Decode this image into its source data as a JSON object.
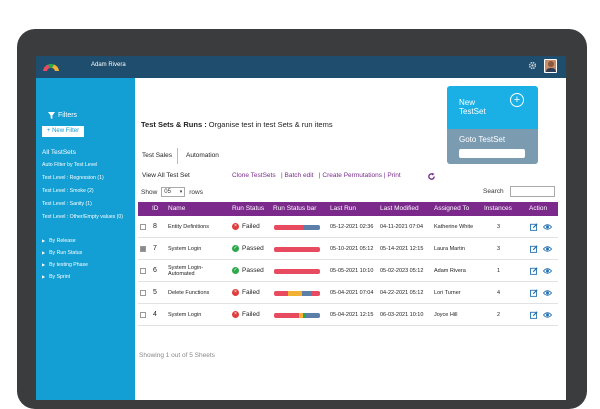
{
  "header": {
    "username": "Adam Rivera"
  },
  "sidebar": {
    "filters_title": "Filters",
    "new_filter_label": "+ New Filter",
    "filters": [
      "All TestSets",
      "Auto Filter by Test Level",
      "Test Level : Regression (1)",
      "Test Level : Smoke (2)",
      "Test Level : Sanity (1)",
      "Test Level : Other/Empty values (0)"
    ],
    "groups": [
      "By Release",
      "By Run Status",
      "By testing Phase",
      "By Sprint"
    ]
  },
  "page": {
    "title_bold": "Test Sets & Runs :",
    "title_rest": " Organise test in test Sets & run items"
  },
  "card": {
    "new_testset": "New\nTestSet",
    "goto_testset": "Goto TestSet"
  },
  "tabs": [
    "Test Sales",
    "Automation"
  ],
  "toolbar": {
    "view_all": "View All Test Set",
    "clone": "Clone TestSets",
    "batch_edit": "Batch edit",
    "create_permutations": "Create Permutations",
    "print": "Print",
    "separator": "|"
  },
  "paging": {
    "show_label": "Show",
    "show_value": "05",
    "rows_label": "rows",
    "search_label": "Search"
  },
  "table": {
    "headers": [
      "ID",
      "Name",
      "Run Status",
      "Run Status bar",
      "Last Run",
      "Last Modified",
      "Assigned To",
      "Instances",
      "Action"
    ],
    "rows": [
      {
        "id": "8",
        "name": "Entity Definitions",
        "status": "Failed",
        "last_run": "05-12-2021 02:36",
        "last_modified": "04-11-2021 07:04",
        "assigned": "Katherine White",
        "instances": "3",
        "checked": false,
        "bar": [
          {
            "c": "#e84a5f",
            "w": 0.62
          },
          {
            "c": "#5b7fa8",
            "w": 0.38
          }
        ]
      },
      {
        "id": "7",
        "name": "System Login",
        "status": "Passed",
        "last_run": "05-10-2021 05:12",
        "last_modified": "05-14-2021 12:15",
        "assigned": "Laura Martin",
        "instances": "3",
        "checked": true,
        "bar": [
          {
            "c": "#e84a5f",
            "w": 1.0
          }
        ]
      },
      {
        "id": "6",
        "name": "System Login-\nAutomated",
        "status": "Passed",
        "last_run": "05-05-2021 10:10",
        "last_modified": "05-02-2023 05:12",
        "assigned": "Adam Rivera",
        "instances": "1",
        "checked": false,
        "bar": [
          {
            "c": "#e84a5f",
            "w": 1.0
          }
        ]
      },
      {
        "id": "5",
        "name": "Delete Functions",
        "status": "Failed",
        "last_run": "05-04-2021 07:04",
        "last_modified": "04-22-2021 05:12",
        "assigned": "Lori Turner",
        "instances": "4",
        "checked": false,
        "bar": [
          {
            "c": "#e84a5f",
            "w": 0.3
          },
          {
            "c": "#f2b134",
            "w": 0.3
          },
          {
            "c": "#5b7fa8",
            "w": 0.2
          },
          {
            "c": "#e84a5f",
            "w": 0.2
          }
        ]
      },
      {
        "id": "4",
        "name": "System Login",
        "status": "Failed",
        "last_run": "05-04-2021 12:15",
        "last_modified": "06-03-2021 10:10",
        "assigned": "Joyce Hill",
        "instances": "2",
        "checked": false,
        "bar": [
          {
            "c": "#e84a5f",
            "w": 0.55
          },
          {
            "c": "#f2b134",
            "w": 0.08
          },
          {
            "c": "#2aa84a",
            "w": 0.07
          },
          {
            "c": "#5b7fa8",
            "w": 0.3
          }
        ]
      }
    ]
  },
  "footer": {
    "text": "Showing 1 out of 5 Sheets"
  },
  "colors": {
    "topbar": "#1f4d6d",
    "sidebar": "#139fd4",
    "header_row": "#7b2a8c",
    "link": "#7a2c8e"
  }
}
